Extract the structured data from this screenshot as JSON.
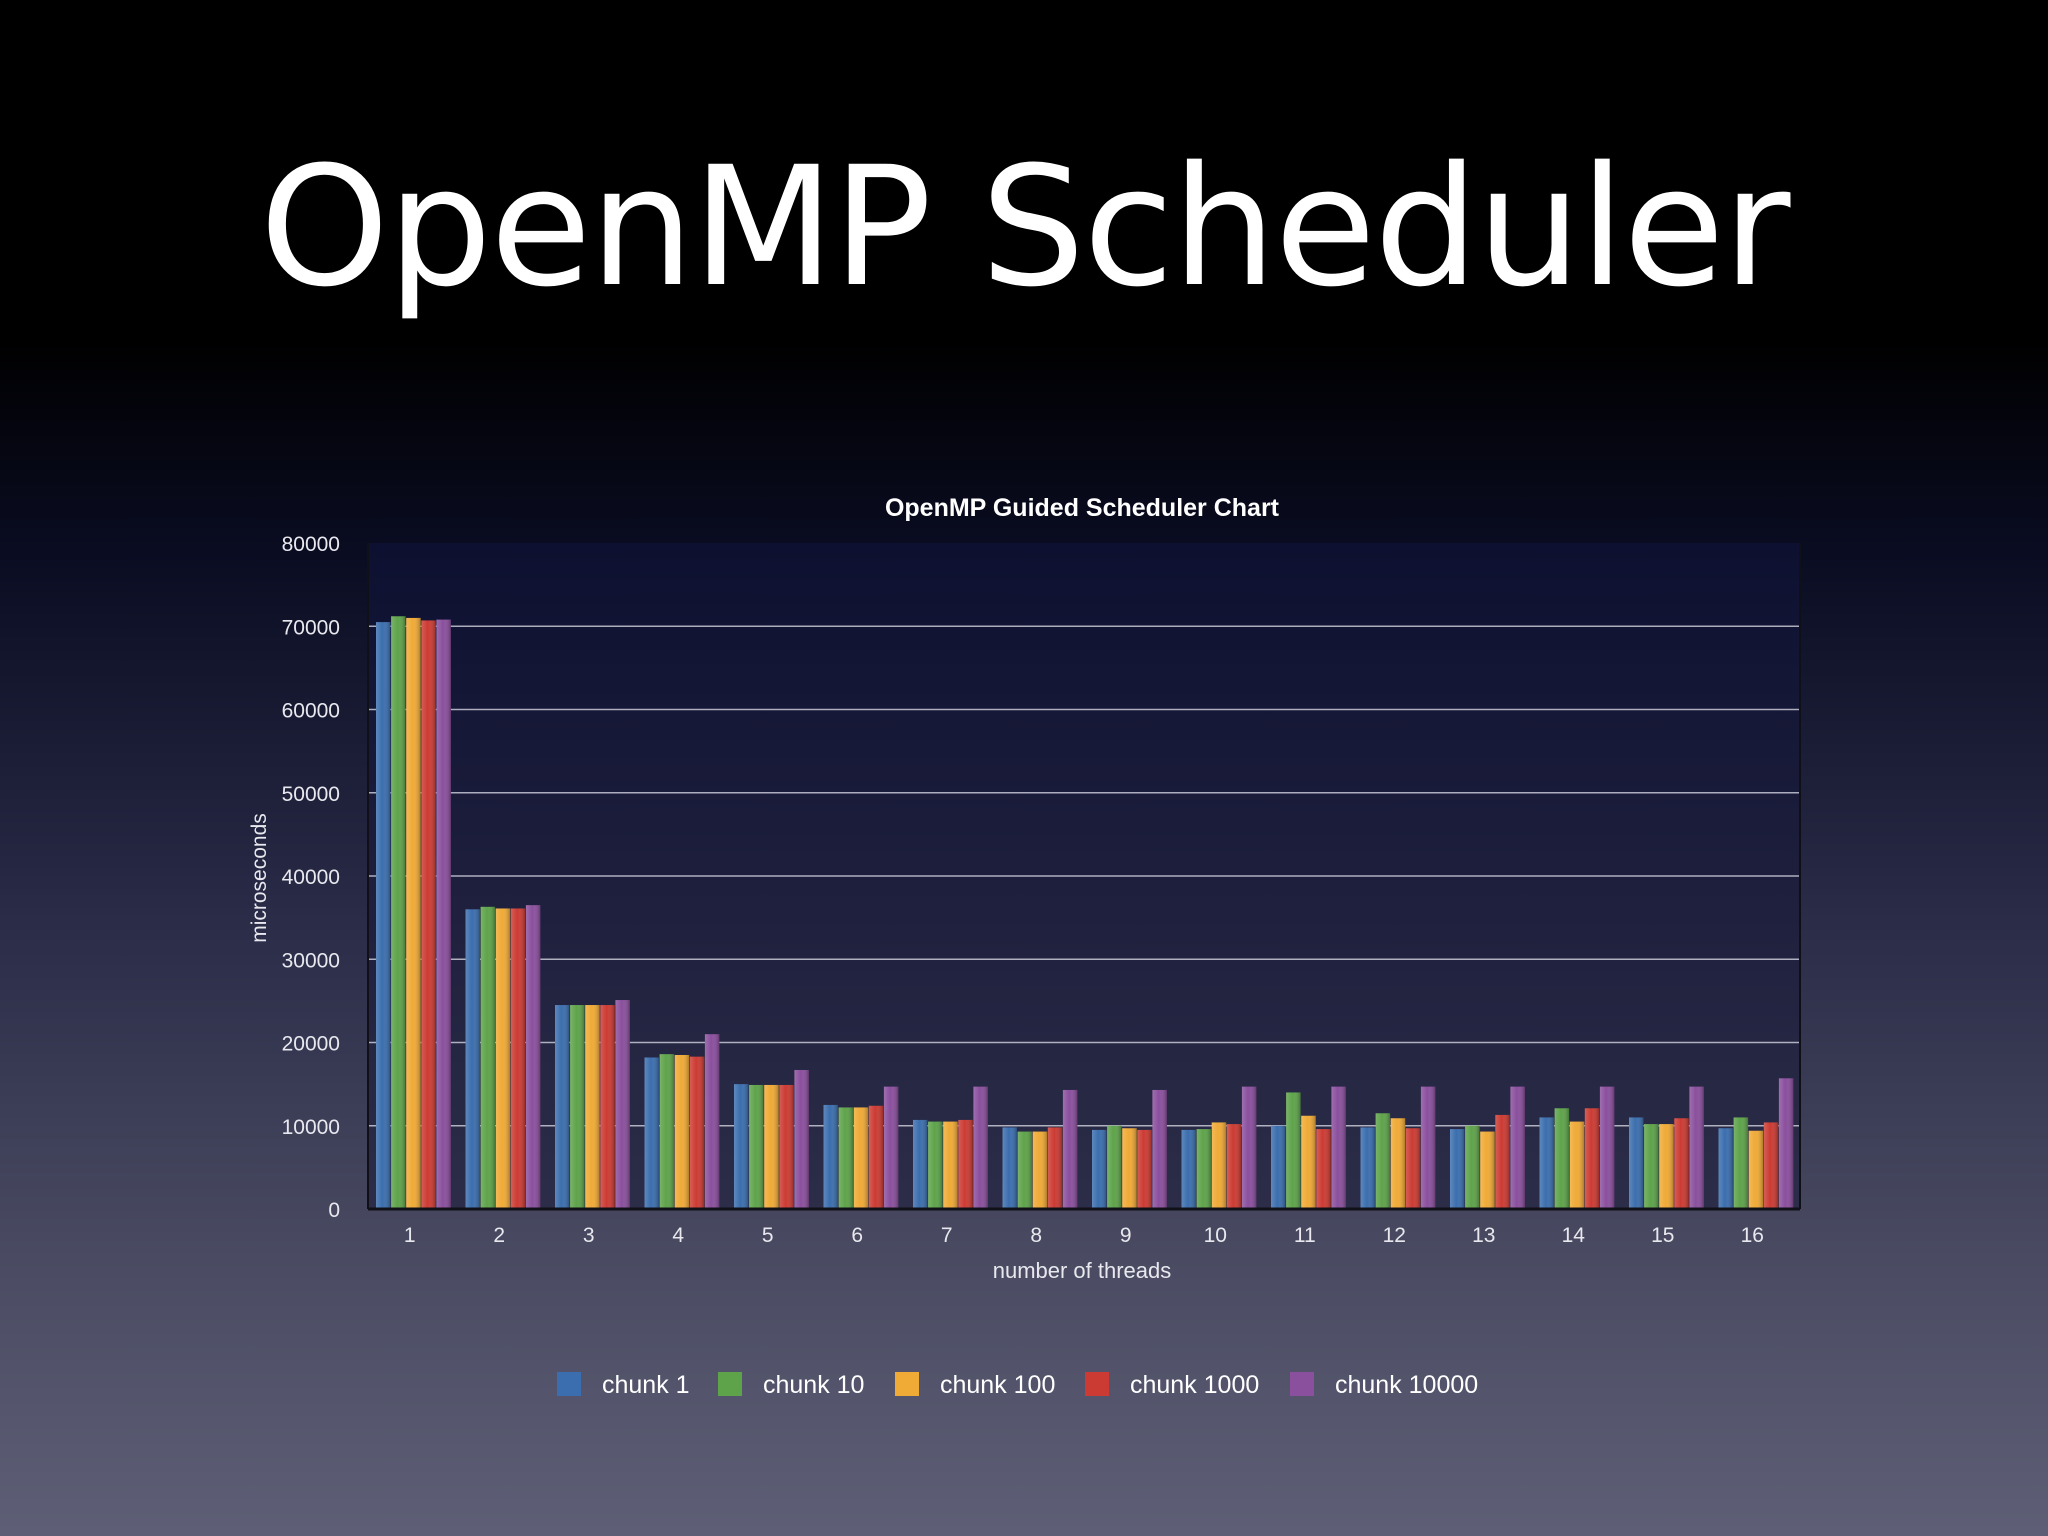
{
  "slide": {
    "title": "OpenMP Scheduler"
  },
  "chart_data": {
    "type": "bar",
    "title": "OpenMP Guided Scheduler Chart",
    "xlabel": "number of threads",
    "ylabel": "microseconds",
    "ylim": [
      0,
      80000
    ],
    "yticks": [
      "0",
      "10000",
      "20000",
      "30000",
      "40000",
      "50000",
      "60000",
      "70000",
      "80000"
    ],
    "grid": true,
    "legend": "bottom",
    "categories": [
      "1",
      "2",
      "3",
      "4",
      "5",
      "6",
      "7",
      "8",
      "9",
      "10",
      "11",
      "12",
      "13",
      "14",
      "15",
      "16"
    ],
    "series": [
      {
        "name": "chunk 1",
        "color": "#3b6eae",
        "values": [
          70500,
          36000,
          24500,
          18200,
          15000,
          12500,
          10700,
          9800,
          9500,
          9500,
          10000,
          9800,
          9600,
          11000,
          11000,
          9700
        ]
      },
      {
        "name": "chunk 10",
        "color": "#5ea34a",
        "values": [
          71200,
          36300,
          24500,
          18600,
          14900,
          12200,
          10500,
          9300,
          10000,
          9600,
          14000,
          11500,
          10000,
          12100,
          10200,
          11000
        ]
      },
      {
        "name": "chunk 100",
        "color": "#f0aa36",
        "values": [
          71000,
          36100,
          24500,
          18500,
          14900,
          12200,
          10500,
          9300,
          9700,
          10400,
          11200,
          10900,
          9300,
          10500,
          10200,
          9400
        ]
      },
      {
        "name": "chunk 1000",
        "color": "#cc3b33",
        "values": [
          70700,
          36100,
          24500,
          18300,
          14900,
          12400,
          10700,
          9800,
          9500,
          10200,
          9600,
          9700,
          11300,
          12100,
          10900,
          10400
        ]
      },
      {
        "name": "chunk 10000",
        "color": "#8a4f9d",
        "values": [
          70800,
          36500,
          25100,
          21000,
          16700,
          14700,
          14700,
          14300,
          14300,
          14700,
          14700,
          14700,
          14700,
          14700,
          14700,
          15700
        ]
      }
    ]
  }
}
